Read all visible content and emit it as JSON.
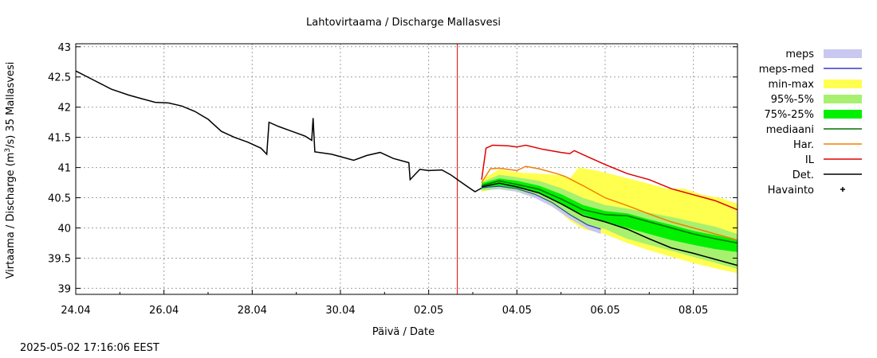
{
  "chart_data": {
    "type": "line",
    "title": "Lahtovirtaama / Discharge  Mallasvesi",
    "xlabel": "Päivä / Date",
    "ylabel": "Virtaama / Discharge (m³/s)  35 Mallasvesi",
    "x_unit": "days since 24.04",
    "xlim": [
      0,
      15
    ],
    "ylim": [
      38.9,
      43.05
    ],
    "x_ticks": [
      {
        "value": 0,
        "label": "24.04"
      },
      {
        "value": 2,
        "label": "26.04"
      },
      {
        "value": 4,
        "label": "28.04"
      },
      {
        "value": 6,
        "label": "30.04"
      },
      {
        "value": 8,
        "label": "02.05"
      },
      {
        "value": 10,
        "label": "04.05"
      },
      {
        "value": 12,
        "label": "06.05"
      },
      {
        "value": 14,
        "label": "08.05"
      }
    ],
    "y_ticks": [
      {
        "value": 39,
        "label": "39"
      },
      {
        "value": 39.5,
        "label": "39.5"
      },
      {
        "value": 40,
        "label": "40"
      },
      {
        "value": 40.5,
        "label": "40.5"
      },
      {
        "value": 41,
        "label": "41"
      },
      {
        "value": 41.5,
        "label": "41.5"
      },
      {
        "value": 42,
        "label": "42"
      },
      {
        "value": 42.5,
        "label": "42.5"
      },
      {
        "value": 43,
        "label": "43"
      }
    ],
    "grid": true,
    "forecast_start": 8.65,
    "legend": [
      {
        "label": "meps",
        "kind": "band",
        "color": "#c8c8f0"
      },
      {
        "label": "meps-med",
        "kind": "line",
        "color": "#3838c8"
      },
      {
        "label": "min-max",
        "kind": "band",
        "color": "#ffff50"
      },
      {
        "label": "95%-5%",
        "kind": "band",
        "color": "#a8f070"
      },
      {
        "label": "75%-25%",
        "kind": "band",
        "color": "#00f000"
      },
      {
        "label": "mediaani",
        "kind": "line",
        "color": "#007000"
      },
      {
        "label": "Har.",
        "kind": "line",
        "color": "#f08000"
      },
      {
        "label": "IL",
        "kind": "line",
        "color": "#e00000"
      },
      {
        "label": "Det.",
        "kind": "line",
        "color": "#000000"
      },
      {
        "label": "Havainto",
        "kind": "point",
        "color": "#000000"
      }
    ],
    "series": {
      "observed": [
        [
          0,
          42.6
        ],
        [
          0.4,
          42.45
        ],
        [
          0.8,
          42.3
        ],
        [
          1.2,
          42.2
        ],
        [
          1.5,
          42.14
        ],
        [
          1.8,
          42.08
        ],
        [
          2.1,
          42.07
        ],
        [
          2.4,
          42.02
        ],
        [
          2.7,
          41.93
        ],
        [
          3.0,
          41.8
        ],
        [
          3.3,
          41.6
        ],
        [
          3.6,
          41.5
        ],
        [
          3.9,
          41.42
        ],
        [
          4.2,
          41.32
        ],
        [
          4.33,
          41.22
        ],
        [
          4.38,
          41.75
        ],
        [
          4.6,
          41.68
        ],
        [
          4.9,
          41.6
        ],
        [
          5.2,
          41.52
        ],
        [
          5.35,
          41.45
        ],
        [
          5.38,
          41.82
        ],
        [
          5.42,
          41.26
        ],
        [
          5.8,
          41.22
        ],
        [
          6.0,
          41.18
        ],
        [
          6.3,
          41.12
        ],
        [
          6.6,
          41.2
        ],
        [
          6.9,
          41.25
        ],
        [
          7.2,
          41.15
        ],
        [
          7.55,
          41.08
        ],
        [
          7.58,
          40.8
        ],
        [
          7.8,
          40.97
        ],
        [
          8.0,
          40.95
        ],
        [
          8.3,
          40.96
        ],
        [
          8.5,
          40.88
        ],
        [
          8.75,
          40.75
        ],
        [
          8.95,
          40.65
        ],
        [
          9.05,
          40.6
        ],
        [
          9.2,
          40.66
        ]
      ],
      "meps": {
        "lower": [
          [
            9.2,
            40.62
          ],
          [
            9.6,
            40.64
          ],
          [
            10.0,
            40.6
          ],
          [
            10.4,
            40.5
          ],
          [
            10.8,
            40.35
          ],
          [
            11.2,
            40.15
          ],
          [
            11.6,
            39.98
          ],
          [
            11.9,
            39.9
          ]
        ],
        "upper": [
          [
            9.2,
            40.72
          ],
          [
            9.6,
            40.74
          ],
          [
            10.0,
            40.7
          ],
          [
            10.4,
            40.62
          ],
          [
            10.8,
            40.5
          ],
          [
            11.2,
            40.3
          ],
          [
            11.6,
            40.12
          ],
          [
            11.9,
            40.05
          ]
        ]
      },
      "meps_med": [
        [
          9.2,
          40.67
        ],
        [
          9.6,
          40.69
        ],
        [
          10.0,
          40.65
        ],
        [
          10.4,
          40.56
        ],
        [
          10.8,
          40.42
        ],
        [
          11.2,
          40.22
        ],
        [
          11.6,
          40.05
        ],
        [
          11.9,
          39.98
        ]
      ],
      "min_max": {
        "lower": [
          [
            9.2,
            40.6
          ],
          [
            9.6,
            40.66
          ],
          [
            10.0,
            40.62
          ],
          [
            10.4,
            40.52
          ],
          [
            10.8,
            40.38
          ],
          [
            11.2,
            40.12
          ],
          [
            11.5,
            39.98
          ],
          [
            12.0,
            39.9
          ],
          [
            12.5,
            39.75
          ],
          [
            13.0,
            39.63
          ],
          [
            13.5,
            39.52
          ],
          [
            14.0,
            39.42
          ],
          [
            14.5,
            39.33
          ],
          [
            15.0,
            39.25
          ]
        ],
        "upper": [
          [
            9.2,
            40.8
          ],
          [
            9.6,
            40.97
          ],
          [
            10.0,
            40.92
          ],
          [
            10.5,
            40.9
          ],
          [
            10.9,
            40.88
          ],
          [
            11.2,
            40.82
          ],
          [
            11.4,
            41.0
          ],
          [
            11.8,
            40.95
          ],
          [
            12.2,
            40.88
          ],
          [
            12.8,
            40.77
          ],
          [
            13.4,
            40.65
          ],
          [
            13.8,
            40.65
          ],
          [
            14.2,
            40.55
          ],
          [
            14.6,
            40.5
          ],
          [
            15.0,
            40.4
          ]
        ]
      },
      "p95_5": {
        "lower": [
          [
            9.2,
            40.62
          ],
          [
            9.6,
            40.66
          ],
          [
            10.0,
            40.62
          ],
          [
            10.5,
            40.52
          ],
          [
            11.0,
            40.3
          ],
          [
            11.5,
            40.06
          ],
          [
            12.0,
            39.98
          ],
          [
            12.5,
            39.82
          ],
          [
            13.0,
            39.72
          ],
          [
            13.5,
            39.62
          ],
          [
            14.0,
            39.52
          ],
          [
            14.5,
            39.42
          ],
          [
            15.0,
            39.32
          ]
        ],
        "upper": [
          [
            9.2,
            40.76
          ],
          [
            9.6,
            40.88
          ],
          [
            10.0,
            40.84
          ],
          [
            10.5,
            40.78
          ],
          [
            11.0,
            40.66
          ],
          [
            11.5,
            40.5
          ],
          [
            12.0,
            40.38
          ],
          [
            12.5,
            40.32
          ],
          [
            13.0,
            40.25
          ],
          [
            13.5,
            40.18
          ],
          [
            14.0,
            40.1
          ],
          [
            14.5,
            40.02
          ],
          [
            15.0,
            39.9
          ]
        ]
      },
      "p75_25": {
        "lower": [
          [
            9.2,
            40.65
          ],
          [
            9.6,
            40.7
          ],
          [
            10.0,
            40.66
          ],
          [
            10.5,
            40.58
          ],
          [
            11.0,
            40.4
          ],
          [
            11.5,
            40.22
          ],
          [
            12.0,
            40.1
          ],
          [
            12.5,
            40.0
          ],
          [
            13.0,
            39.9
          ],
          [
            13.5,
            39.8
          ],
          [
            14.0,
            39.72
          ],
          [
            14.5,
            39.65
          ],
          [
            15.0,
            39.6
          ]
        ],
        "upper": [
          [
            9.2,
            40.74
          ],
          [
            9.6,
            40.82
          ],
          [
            10.0,
            40.78
          ],
          [
            10.5,
            40.7
          ],
          [
            11.0,
            40.56
          ],
          [
            11.5,
            40.38
          ],
          [
            12.0,
            40.28
          ],
          [
            12.5,
            40.24
          ],
          [
            13.0,
            40.14
          ],
          [
            13.5,
            40.05
          ],
          [
            14.0,
            39.95
          ],
          [
            14.5,
            39.88
          ],
          [
            15.0,
            39.8
          ]
        ]
      },
      "median": [
        [
          9.2,
          40.7
        ],
        [
          9.6,
          40.78
        ],
        [
          10.0,
          40.72
        ],
        [
          10.5,
          40.64
        ],
        [
          11.0,
          40.48
        ],
        [
          11.5,
          40.3
        ],
        [
          12.0,
          40.22
        ],
        [
          12.5,
          40.2
        ],
        [
          13.0,
          40.1
        ],
        [
          13.5,
          40.0
        ],
        [
          14.0,
          39.9
        ],
        [
          14.5,
          39.82
        ],
        [
          15.0,
          39.75
        ]
      ],
      "har": [
        [
          9.2,
          40.75
        ],
        [
          9.4,
          40.98
        ],
        [
          9.6,
          40.99
        ],
        [
          10.0,
          40.95
        ],
        [
          10.2,
          41.02
        ],
        [
          10.5,
          40.98
        ],
        [
          10.9,
          40.9
        ],
        [
          11.1,
          40.85
        ],
        [
          11.5,
          40.7
        ],
        [
          12.0,
          40.5
        ],
        [
          12.5,
          40.37
        ],
        [
          13.0,
          40.23
        ],
        [
          13.5,
          40.1
        ],
        [
          14.0,
          40.0
        ],
        [
          14.5,
          39.9
        ],
        [
          15.0,
          39.8
        ]
      ],
      "il": [
        [
          9.2,
          40.8
        ],
        [
          9.3,
          41.32
        ],
        [
          9.45,
          41.37
        ],
        [
          9.8,
          41.36
        ],
        [
          10.0,
          41.34
        ],
        [
          10.2,
          41.37
        ],
        [
          10.6,
          41.3
        ],
        [
          11.0,
          41.25
        ],
        [
          11.2,
          41.23
        ],
        [
          11.3,
          41.28
        ],
        [
          11.6,
          41.18
        ],
        [
          12.0,
          41.05
        ],
        [
          12.5,
          40.9
        ],
        [
          13.0,
          40.8
        ],
        [
          13.5,
          40.65
        ],
        [
          14.0,
          40.55
        ],
        [
          14.5,
          40.45
        ],
        [
          15.0,
          40.3
        ]
      ],
      "det": [
        [
          9.2,
          40.68
        ],
        [
          9.6,
          40.74
        ],
        [
          10.0,
          40.68
        ],
        [
          10.5,
          40.58
        ],
        [
          11.0,
          40.4
        ],
        [
          11.5,
          40.2
        ],
        [
          12.0,
          40.1
        ],
        [
          12.5,
          39.98
        ],
        [
          13.0,
          39.82
        ],
        [
          13.5,
          39.67
        ],
        [
          14.0,
          39.58
        ],
        [
          14.5,
          39.48
        ],
        [
          15.0,
          39.38
        ]
      ]
    }
  },
  "footer": {
    "timestamp": "2025-05-02 17:16:06 EEST"
  }
}
